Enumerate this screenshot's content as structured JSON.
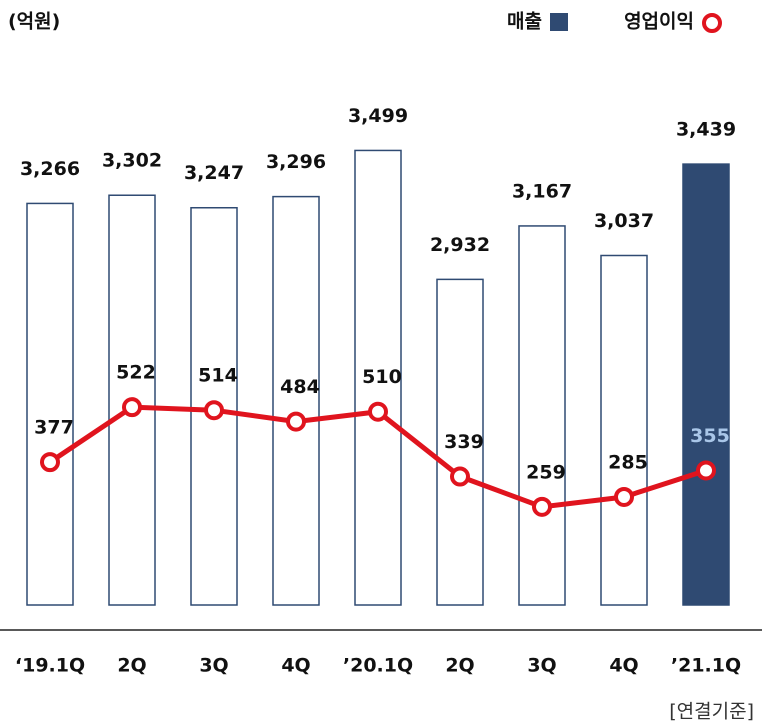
{
  "chart_data": {
    "type": "bar_line",
    "unit_label": "(억원)",
    "note": "[연결기준]",
    "categories": [
      "‘19.1Q",
      "2Q",
      "3Q",
      "4Q",
      "’20.1Q",
      "2Q",
      "3Q",
      "4Q",
      "’21.1Q"
    ],
    "series": [
      {
        "name": "매출",
        "type": "bar",
        "color": "#2f4a72",
        "fills": [
          "#ffffff",
          "#ffffff",
          "#ffffff",
          "#ffffff",
          "#ffffff",
          "#ffffff",
          "#ffffff",
          "#ffffff",
          "#2f4a72"
        ],
        "values": [
          3266,
          3302,
          3247,
          3296,
          3499,
          2932,
          3167,
          3037,
          3439
        ],
        "value_labels": [
          "3,266",
          "3,302",
          "3,247",
          "3,296",
          "3,499",
          "2,932",
          "3,167",
          "3,037",
          "3,439"
        ]
      },
      {
        "name": "영업이익",
        "type": "line",
        "axis": "y2",
        "color": "#e0141e",
        "values": [
          377,
          522,
          514,
          484,
          510,
          339,
          259,
          285,
          355
        ]
      }
    ],
    "ylim": [
      1500,
      3800
    ],
    "y2lim": [
      0,
      1380
    ]
  }
}
